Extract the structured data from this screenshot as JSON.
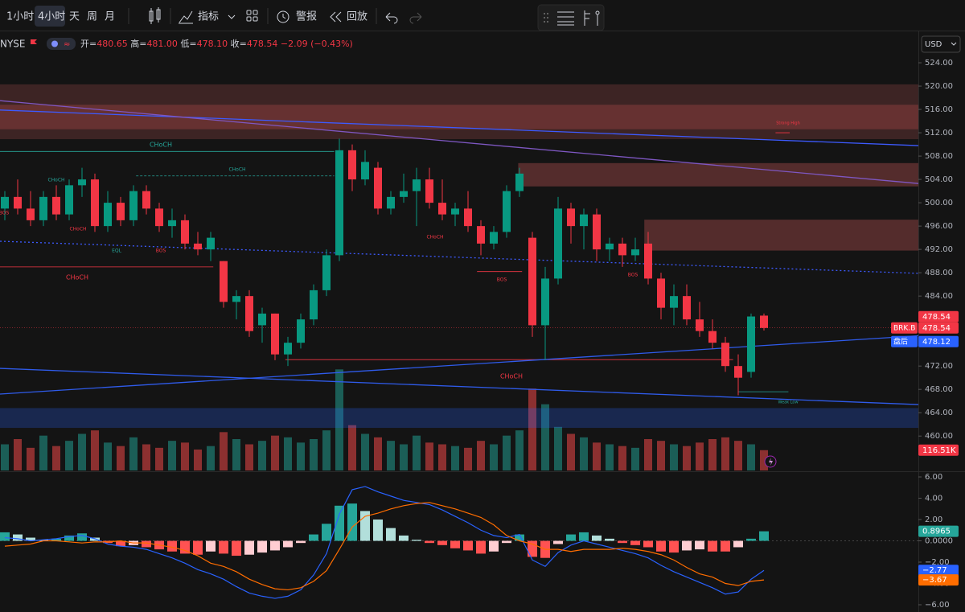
{
  "toolbar": {
    "intervals": [
      "1小时",
      "4小时",
      "天",
      "周",
      "月"
    ],
    "indicators": "指标",
    "alert": "警报",
    "replay": "回放"
  },
  "header": {
    "symbol": "NYSE",
    "ohlc": [
      {
        "label": "开=",
        "value": "480.65"
      },
      {
        "label": "高=",
        "value": "481.00"
      },
      {
        "label": "低=",
        "value": "478.10"
      },
      {
        "label": "收=",
        "value": "478.54"
      }
    ],
    "change": "−2.09 (−0.43%)"
  },
  "chart_data": [
    {
      "type": "candlestick",
      "currency": "USD",
      "up_color": "#089981",
      "down_color": "#f23645",
      "grid": false,
      "ylim": [
        454.1,
        525.8
      ],
      "yticks": [
        {
          "value": 524,
          "label": "524.00"
        },
        {
          "value": 520,
          "label": "520.00"
        },
        {
          "value": 516,
          "label": "516.00"
        },
        {
          "value": 512,
          "label": "512.00"
        },
        {
          "value": 508,
          "label": "508.00"
        },
        {
          "value": 504,
          "label": "504.00"
        },
        {
          "value": 500,
          "label": "500.00"
        },
        {
          "value": 496,
          "label": "496.00"
        },
        {
          "value": 492,
          "label": "492.00"
        },
        {
          "value": 488,
          "label": "488.00"
        },
        {
          "value": 484,
          "label": "484.00"
        },
        {
          "value": 480,
          "label": "480.00"
        },
        {
          "value": 476,
          "label": "476.00"
        },
        {
          "value": 472,
          "label": "472.00"
        },
        {
          "value": 468,
          "label": "468.00"
        },
        {
          "value": 464,
          "label": "464.00"
        },
        {
          "value": 460,
          "label": "460.00"
        }
      ],
      "open": [
        499,
        501,
        499,
        497,
        501,
        498,
        503,
        504,
        496,
        500,
        497,
        502,
        499,
        496,
        497,
        493,
        492,
        490,
        483,
        484,
        479,
        481,
        474,
        476,
        480,
        485,
        491,
        509,
        504,
        506,
        499,
        501,
        502,
        504,
        500,
        498,
        499,
        496,
        493,
        495,
        502,
        494,
        479,
        487,
        499,
        496,
        498,
        492,
        493,
        491,
        493,
        487,
        482,
        484,
        480,
        478,
        476,
        472,
        471,
        480.65
      ],
      "high": [
        502,
        504,
        502,
        502,
        503,
        504,
        506,
        505,
        502,
        501,
        503,
        503,
        500,
        499,
        498,
        495,
        495,
        490,
        485,
        485,
        482,
        481,
        477,
        481,
        486,
        492,
        511,
        510,
        509,
        507,
        502,
        505,
        506,
        506,
        504,
        500,
        502,
        497,
        496,
        503,
        506,
        495,
        489,
        501,
        500,
        499,
        499,
        494,
        494,
        494,
        495,
        488,
        486,
        486,
        483,
        480,
        477,
        474,
        481,
        481.0
      ],
      "low": [
        497,
        498,
        496,
        496,
        497,
        497,
        501,
        495,
        495,
        496,
        496,
        498,
        495,
        494,
        492,
        491,
        490,
        482,
        480,
        477,
        476,
        473,
        472,
        475,
        479,
        484,
        490,
        502,
        503,
        498,
        498,
        500,
        496,
        499,
        497,
        496,
        495,
        491,
        492,
        494,
        501,
        477,
        473,
        486,
        493,
        492,
        490,
        490,
        489,
        490,
        486,
        480,
        479,
        479,
        477,
        475,
        471,
        467,
        470,
        478.1
      ],
      "close": [
        501,
        499,
        497,
        501,
        498,
        503,
        504,
        496,
        500,
        497,
        502,
        499,
        496,
        497,
        493,
        492,
        494,
        483,
        484,
        478,
        481,
        474,
        476,
        480,
        485,
        491,
        509,
        504,
        507,
        499,
        501,
        502,
        504,
        500,
        498,
        499,
        496,
        493,
        495,
        502,
        505,
        479,
        487,
        499,
        496,
        498,
        492,
        493,
        491,
        492,
        487,
        482,
        484,
        480,
        478,
        476,
        472,
        470,
        480.5,
        478.54
      ],
      "zones": [
        {
          "from": -0.375,
          "to": 71,
          "low": 510.9,
          "high": 520.3,
          "color": "rgba(170,80,80,0.28)"
        },
        {
          "from": -0.375,
          "to": 71,
          "low": 512.6,
          "high": 516.8,
          "color": "rgba(200,80,80,0.3)"
        },
        {
          "from": 39.9,
          "to": 71,
          "low": 502.8,
          "high": 506.8,
          "color": "rgba(180,80,80,0.4)"
        },
        {
          "from": 49.7,
          "to": 71,
          "low": 491.8,
          "high": 497.1,
          "color": "rgba(180,80,80,0.4)"
        },
        {
          "from": -0.375,
          "to": 71,
          "low": 461.4,
          "high": 464.8,
          "color": "rgba(41,98,255,0.25)"
        }
      ],
      "trendlines": [
        {
          "from": [
            -0.375,
            515.9
          ],
          "to": [
            71,
            509.8
          ],
          "color": "#3d5afe",
          "style": "solid"
        },
        {
          "from": [
            -0.375,
            517.5
          ],
          "to": [
            71,
            503.3
          ],
          "color": "#7e57c2",
          "style": "solid"
        },
        {
          "from": [
            -0.375,
            467.2
          ],
          "to": [
            71,
            477.2
          ],
          "color": "#2f5bea",
          "style": "solid"
        },
        {
          "from": [
            -0.375,
            471.6
          ],
          "to": [
            71,
            465.4
          ],
          "color": "#2f5bea",
          "style": "solid"
        },
        {
          "from": [
            -0.375,
            493.4
          ],
          "to": [
            71,
            487.9
          ],
          "color": "#3d5afe",
          "style": "dotted"
        }
      ],
      "levels": [
        {
          "from": -0.375,
          "to": 25.6,
          "price": 508.8,
          "color": "#26a69a"
        },
        {
          "from": 10.2,
          "to": 25.6,
          "price": 504.6,
          "color": "#26a69a"
        },
        {
          "from": -0.375,
          "to": 16.2,
          "price": 489.0,
          "color": "#f23645"
        },
        {
          "from": 21.8,
          "to": 56.6,
          "price": 473.1,
          "color": "#f23645"
        },
        {
          "from": 36.7,
          "to": 40.2,
          "price": 488.2,
          "color": "#f23645"
        },
        {
          "from": 59.9,
          "to": 61.0,
          "price": 512.0,
          "color": "#f23645"
        },
        {
          "from": 57.0,
          "to": 60.9,
          "price": 467.6,
          "color": "#26a69a"
        }
      ],
      "annotations": [
        {
          "text": "CHoCH",
          "color": "#26a69a"
        },
        {
          "text": "CHoCH",
          "color": "#26a69a"
        },
        {
          "text": "CHoCH",
          "color": "#26a69a"
        },
        {
          "text": "CHoCH",
          "color": "#f23645"
        },
        {
          "text": "CHoCH",
          "color": "#f23645"
        },
        {
          "text": "CHoCH",
          "color": "#f23645"
        },
        {
          "text": "CHoCH",
          "color": "#f23645"
        },
        {
          "text": "EQL",
          "color": "#26a69a"
        },
        {
          "text": "BOS",
          "color": "#f23645"
        },
        {
          "text": "BOS",
          "color": "#f23645"
        },
        {
          "text": "BOS",
          "color": "#f23645"
        },
        {
          "text": "BOS",
          "color": "#f23645"
        },
        {
          "text": "Strong High",
          "color": "#f23645"
        },
        {
          "text": "Weak Low",
          "color": "#26a69a"
        }
      ],
      "axis_labels": [
        {
          "value": 478.54,
          "label": "478.54",
          "color": "#f23645"
        },
        {
          "tag": "BRK.B",
          "value": 478.54,
          "label": "478.54",
          "color": "#f23645"
        },
        {
          "tag": "盘后",
          "value": 478.12,
          "label": "478.12",
          "color": "#2962ff"
        }
      ]
    },
    {
      "type": "bar",
      "up_color": "#1b5e57",
      "down_color": "#8c3030",
      "ylim": [
        0,
        2400
      ],
      "values": [
        150,
        180,
        130,
        200,
        140,
        170,
        210,
        230,
        160,
        140,
        190,
        150,
        130,
        170,
        160,
        120,
        140,
        220,
        180,
        150,
        170,
        200,
        190,
        160,
        180,
        230,
        580,
        260,
        210,
        190,
        170,
        150,
        200,
        160,
        150,
        140,
        130,
        170,
        150,
        200,
        230,
        470,
        380,
        250,
        210,
        190,
        160,
        150,
        140,
        130,
        180,
        170,
        150,
        140,
        160,
        180,
        190,
        170,
        150,
        116.51
      ],
      "axis_label": {
        "value": 116.51,
        "label": "116.51K",
        "color": "#f23645"
      }
    },
    {
      "type": "macd",
      "ylim": [
        -6.68,
        6.38
      ],
      "yticks": [
        {
          "value": 6,
          "label": "6.00"
        },
        {
          "value": 4,
          "label": "4.00"
        },
        {
          "value": 2,
          "label": "2.00"
        },
        {
          "value": 0,
          "label": "0.0000"
        },
        {
          "value": -2,
          "label": "−2.00"
        },
        {
          "value": -4,
          "label": "−4.00"
        },
        {
          "value": -6,
          "label": "−6.00"
        }
      ],
      "histogram": {
        "colors": [
          "#26a69a",
          "#b2dfdb",
          "#ff5252",
          "#ffcdd2"
        ],
        "values": [
          0.8,
          0.6,
          0.3,
          0.1,
          0.2,
          0.5,
          0.7,
          0.3,
          -0.2,
          -0.5,
          -0.4,
          -0.6,
          -0.8,
          -1.0,
          -1.2,
          -1.3,
          -1.0,
          -1.2,
          -1.4,
          -1.3,
          -1.1,
          -0.9,
          -0.6,
          -0.2,
          0.6,
          1.6,
          3.3,
          3.5,
          2.8,
          2.0,
          1.2,
          0.5,
          0.1,
          -0.2,
          -0.4,
          -0.7,
          -0.9,
          -1.2,
          -1.0,
          -0.2,
          0.6,
          -1.5,
          -1.6,
          -0.3,
          0.6,
          0.8,
          0.5,
          0.2,
          -0.2,
          -0.4,
          -0.6,
          -1.0,
          -1.1,
          -0.9,
          -0.8,
          -1.0,
          -1.0,
          -0.6,
          0.2,
          0.8965
        ]
      },
      "series": [
        {
          "color": "#2962ff",
          "values": [
            0.3,
            0.2,
            0.0,
            0.1,
            0.2,
            0.4,
            0.5,
            0.2,
            -0.3,
            -0.5,
            -0.6,
            -0.8,
            -1.2,
            -1.6,
            -2.1,
            -2.7,
            -3.1,
            -3.6,
            -4.3,
            -4.9,
            -5.2,
            -5.4,
            -5.2,
            -4.6,
            -3.2,
            -1.2,
            2.5,
            4.8,
            5.1,
            4.6,
            4.2,
            3.8,
            3.6,
            3.4,
            2.9,
            2.3,
            1.7,
            1.0,
            0.5,
            0.3,
            0.6,
            -1.8,
            -2.4,
            -1.1,
            -0.4,
            0.0,
            -0.3,
            -0.6,
            -0.9,
            -1.2,
            -1.6,
            -2.3,
            -2.9,
            -3.4,
            -3.9,
            -4.4,
            -5.0,
            -4.8,
            -3.6,
            -2.77
          ]
        },
        {
          "color": "#ff6d00",
          "values": [
            -0.5,
            -0.4,
            -0.3,
            0.0,
            0.0,
            -0.1,
            -0.2,
            -0.1,
            -0.1,
            0.0,
            -0.2,
            -0.2,
            -0.4,
            -0.6,
            -0.9,
            -1.4,
            -2.1,
            -2.4,
            -2.9,
            -3.6,
            -4.1,
            -4.5,
            -4.6,
            -4.4,
            -3.8,
            -2.8,
            -0.8,
            1.3,
            2.3,
            2.6,
            3.0,
            3.3,
            3.5,
            3.6,
            3.3,
            3.0,
            2.6,
            2.2,
            1.5,
            0.5,
            0.0,
            -0.3,
            -0.8,
            -0.8,
            -1.0,
            -0.8,
            -0.8,
            -0.8,
            -0.7,
            -0.8,
            -1.0,
            -1.3,
            -1.8,
            -2.5,
            -3.1,
            -3.4,
            -4.0,
            -4.2,
            -3.8,
            -3.67
          ]
        }
      ],
      "axis_labels": [
        {
          "value": 0.8965,
          "label": "0.8965",
          "color": "#26a69a"
        },
        {
          "value": -2.77,
          "label": "−2.77",
          "color": "#2962ff"
        },
        {
          "value": -3.67,
          "label": "−3.67",
          "color": "#ff6d00"
        }
      ]
    }
  ]
}
